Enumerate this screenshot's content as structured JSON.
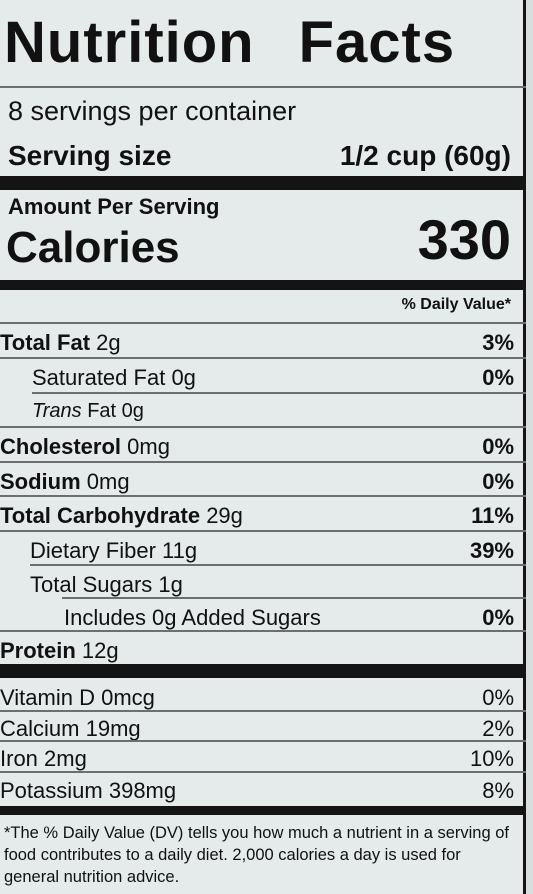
{
  "title_word1": "Nutrition",
  "title_word2": "Facts",
  "servings_per_container": "8 servings per container",
  "serving_size_label": "Serving size",
  "serving_size_value": "1/2 cup (60g)",
  "amount_per_serving": "Amount Per Serving",
  "calories_label": "Calories",
  "calories_value": "330",
  "daily_value_header": "% Daily Value*",
  "nutrients": [
    {
      "name": "Total Fat",
      "amount": "2g",
      "dv": "3%"
    },
    {
      "name": "Saturated Fat",
      "amount": "0g",
      "dv": "0%"
    },
    {
      "name": "Trans",
      "amount": "Fat 0g",
      "dv": ""
    },
    {
      "name": "Cholesterol",
      "amount": "0mg",
      "dv": "0%"
    },
    {
      "name": "Sodium",
      "amount": "0mg",
      "dv": "0%"
    },
    {
      "name": "Total Carbohydrate",
      "amount": "29g",
      "dv": "11%"
    },
    {
      "name": "Dietary Fiber",
      "amount": "11g",
      "dv": "39%"
    },
    {
      "name": "Total Sugars",
      "amount": "1g",
      "dv": ""
    },
    {
      "name": "Includes 0g Added Sugars",
      "amount": "",
      "dv": "0%"
    },
    {
      "name": "Protein",
      "amount": "12g",
      "dv": ""
    }
  ],
  "vitamins": [
    {
      "name": "Vitamin D",
      "amount": "0mcg",
      "dv": "0%"
    },
    {
      "name": "Calcium",
      "amount": "19mg",
      "dv": "2%"
    },
    {
      "name": "Iron",
      "amount": "2mg",
      "dv": "10%"
    },
    {
      "name": "Potassium",
      "amount": "398mg",
      "dv": "8%"
    }
  ],
  "footnote": "*The % Daily Value (DV) tells you how much a nutrient in a serving of food contributes to a daily diet. 2,000 calories a day is used for general nutrition advice."
}
